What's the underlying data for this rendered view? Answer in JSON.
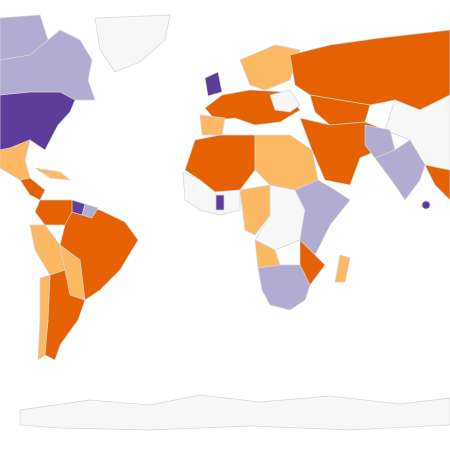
{
  "palette": [
    "#5e3c99",
    "#b2abd2",
    "#f7f7f7",
    "#fdb863",
    "#e66101"
  ]
}
